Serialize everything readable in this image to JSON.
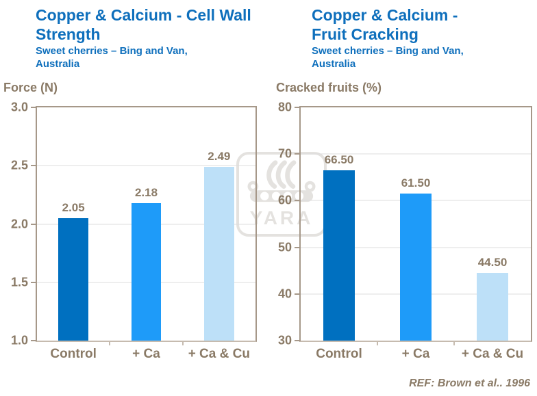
{
  "footer": {
    "ref": "REF: Brown et al.. 1996"
  },
  "watermark": {
    "icon": "yara-viking-ship-logo",
    "text": "YARA"
  },
  "colors": {
    "title_blue": "#0E6FBC",
    "axis_text_brown": "#8A7A66",
    "axis_line": "#A69889",
    "bottom_axis_line": "#C6BBAF",
    "gridline": "#DCDCDC",
    "watermark_gray": "#E4E2DF",
    "background": "#FFFFFF",
    "bar_dark_blue": "#0070C0",
    "bar_bright_blue": "#1E9BF9",
    "bar_light_blue": "#BDE0F8"
  },
  "chart_data": [
    {
      "type": "bar",
      "title": "Copper & Calcium - Cell Wall Strength",
      "subtitle": "Sweet cherries – Bing and Van, Australia",
      "ylabel": "Force (N)",
      "xlabel": "",
      "categories": [
        "Control",
        "+ Ca",
        "+ Ca & Cu"
      ],
      "values": [
        2.05,
        2.18,
        2.49
      ],
      "value_labels": [
        "2.05",
        "2.18",
        "2.49"
      ],
      "ylim": [
        1.0,
        3.0
      ],
      "yticks": [
        3.0,
        2.5,
        2.0,
        1.5,
        1.0
      ],
      "ytick_labels": [
        "3.0",
        "2.5",
        "2.0",
        "1.5",
        "1.0"
      ],
      "bar_colors": [
        "#0070C0",
        "#1E9BF9",
        "#BDE0F8"
      ],
      "grid": true,
      "legend": "none"
    },
    {
      "type": "bar",
      "title": "Copper & Calcium - Fruit Cracking",
      "subtitle": "Sweet cherries – Bing and Van, Australia",
      "ylabel": "Cracked fruits (%)",
      "xlabel": "",
      "categories": [
        "Control",
        "+ Ca",
        "+ Ca & Cu"
      ],
      "values": [
        66.5,
        61.5,
        44.5
      ],
      "value_labels": [
        "66.50",
        "61.50",
        "44.50"
      ],
      "ylim": [
        30,
        80
      ],
      "yticks": [
        80,
        70,
        60,
        50,
        40,
        30
      ],
      "ytick_labels": [
        "80",
        "70",
        "60",
        "50",
        "40",
        "30"
      ],
      "bar_colors": [
        "#0070C0",
        "#1E9BF9",
        "#BDE0F8"
      ],
      "grid": true,
      "legend": "none"
    }
  ]
}
